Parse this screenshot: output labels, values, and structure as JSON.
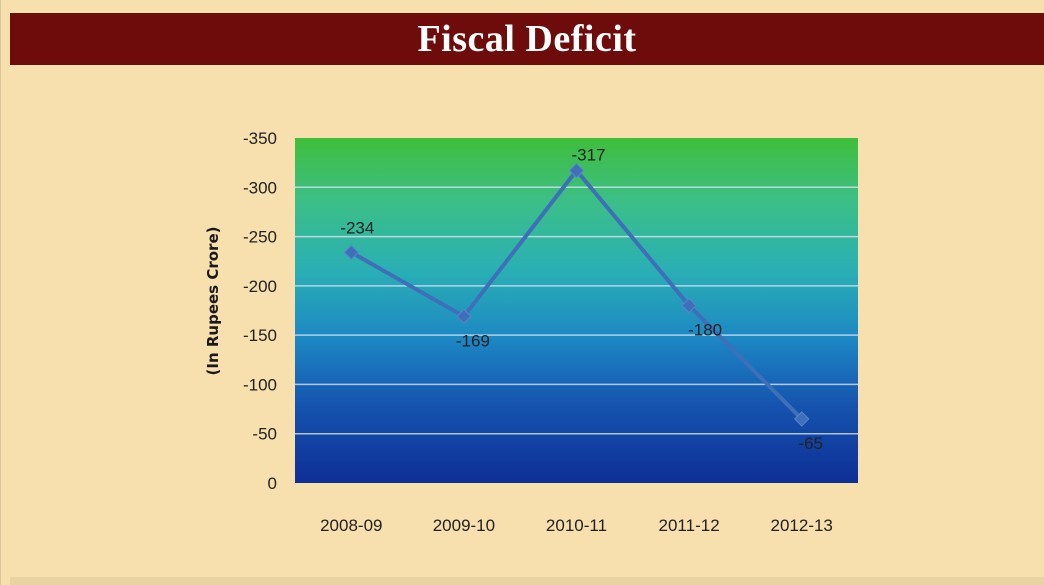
{
  "title": "Fiscal Deficit",
  "chart_data": {
    "type": "line",
    "categories": [
      "2008-09",
      "2009-10",
      "2010-11",
      "2011-12",
      "2012-13"
    ],
    "series": [
      {
        "values": [
          -234,
          -169,
          -317,
          -180,
          -65
        ],
        "color": "#3f6fb8"
      }
    ],
    "data_labels": [
      "-234",
      "-169",
      "-317",
      "-180",
      "-65"
    ],
    "ylabel": "(In Rupees Crore)",
    "xlabel": "",
    "ylim": [
      -350,
      0
    ],
    "y_axis_reversed": true,
    "y_ticks": [
      -350,
      -300,
      -250,
      -200,
      -150,
      -100,
      -50,
      0
    ],
    "grid": true,
    "plot_background": "gradient green-to-navy",
    "page_background": "#f7dfae",
    "title_background": "#6e0b0b"
  }
}
